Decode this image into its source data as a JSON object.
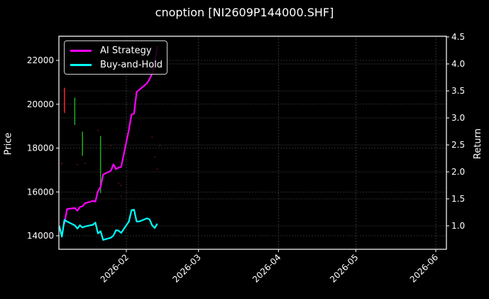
{
  "title": "cnoption [NI2609P144000.SHF]",
  "colors": {
    "background": "#000000",
    "ai_strategy": "#ff00ff",
    "buy_and_hold": "#00ffff",
    "candle_up": "#22aa22",
    "candle_down": "#ff2222",
    "grid": "#555555",
    "axis": "#ffffff"
  },
  "legend": {
    "items": [
      {
        "label": "AI Strategy",
        "color": "#ff00ff"
      },
      {
        "label": "Buy-and-Hold",
        "color": "#00ffff"
      }
    ]
  },
  "chart_data": {
    "type": "line",
    "title": "cnoption [NI2609P144000.SHF]",
    "xlabel": "",
    "ylabel": "Price",
    "ylabel_right": "Return",
    "x_ticks": [
      "2026-02",
      "2026-03",
      "2026-04",
      "2026-05",
      "2026-06"
    ],
    "y_ticks_left": [
      14000,
      16000,
      18000,
      20000,
      22000
    ],
    "y_ticks_right": [
      1.0,
      1.5,
      2.0,
      2.5,
      3.0,
      3.5,
      4.0,
      4.5
    ],
    "ylim_left": [
      13400,
      23100
    ],
    "ylim_right": [
      0.58,
      4.5
    ],
    "grid": true,
    "legend_position": "upper left",
    "series": [
      {
        "name": "AI Strategy",
        "axis": "right",
        "x": [
          "2026-01-08",
          "2026-01-09",
          "2026-01-12",
          "2026-01-13",
          "2026-01-14",
          "2026-01-15",
          "2026-01-16",
          "2026-01-19",
          "2026-01-20",
          "2026-01-21",
          "2026-01-22",
          "2026-01-23",
          "2026-01-26",
          "2026-01-27",
          "2026-01-28",
          "2026-01-29",
          "2026-01-30",
          "2026-02-02",
          "2026-02-03",
          "2026-02-04",
          "2026-02-05",
          "2026-02-06",
          "2026-02-09",
          "2026-02-10",
          "2026-02-11",
          "2026-02-12",
          "2026-02-13"
        ],
        "values": [
          1.04,
          1.31,
          1.33,
          1.28,
          1.35,
          1.36,
          1.42,
          1.46,
          1.45,
          1.64,
          1.72,
          1.95,
          2.02,
          2.14,
          2.05,
          2.08,
          2.09,
          2.78,
          3.06,
          3.08,
          3.48,
          3.52,
          3.64,
          3.72,
          3.82,
          4.02,
          4.33
        ]
      },
      {
        "name": "Buy-and-Hold",
        "axis": "right",
        "x": [
          "2026-01-06",
          "2026-01-07",
          "2026-01-08",
          "2026-01-09",
          "2026-01-12",
          "2026-01-13",
          "2026-01-14",
          "2026-01-15",
          "2026-01-16",
          "2026-01-19",
          "2026-01-20",
          "2026-01-21",
          "2026-01-22",
          "2026-01-23",
          "2026-01-26",
          "2026-01-27",
          "2026-01-28",
          "2026-01-29",
          "2026-01-30",
          "2026-02-02",
          "2026-02-03",
          "2026-02-04",
          "2026-02-05",
          "2026-02-06",
          "2026-02-09",
          "2026-02-10",
          "2026-02-11",
          "2026-02-12",
          "2026-02-13"
        ],
        "values": [
          1.0,
          0.8,
          1.11,
          1.08,
          1.01,
          0.95,
          1.01,
          0.97,
          0.99,
          1.02,
          1.06,
          0.86,
          0.9,
          0.74,
          0.78,
          0.82,
          0.92,
          0.91,
          0.87,
          1.08,
          1.29,
          1.3,
          1.08,
          1.08,
          1.14,
          1.12,
          1.01,
          0.96,
          1.04
        ]
      }
    ],
    "candles": [
      {
        "x": "2026-01-08",
        "high": 20750,
        "low": 19600,
        "direction": "down"
      },
      {
        "x": "2026-01-12",
        "high": 20300,
        "low": 19050,
        "direction": "up"
      },
      {
        "x": "2026-01-15",
        "high": 18750,
        "low": 17650,
        "direction": "up"
      },
      {
        "x": "2026-01-22",
        "high": 18550,
        "low": 15950,
        "direction": "up"
      }
    ],
    "price_points": [
      {
        "x": "2026-01-07",
        "price": 17300
      },
      {
        "x": "2026-01-13",
        "price": 17250
      },
      {
        "x": "2026-01-16",
        "price": 17300
      },
      {
        "x": "2026-01-21",
        "price": 18800
      },
      {
        "x": "2026-01-26",
        "price": 18100
      },
      {
        "x": "2026-01-29",
        "price": 16400
      },
      {
        "x": "2026-01-30",
        "price": 16300
      },
      {
        "x": "2026-01-30",
        "price": 15800
      },
      {
        "x": "2026-02-11",
        "price": 18500
      },
      {
        "x": "2026-02-12",
        "price": 17600
      },
      {
        "x": "2026-02-13",
        "price": 17050
      },
      {
        "x": "2026-02-14",
        "price": 18100
      }
    ]
  }
}
